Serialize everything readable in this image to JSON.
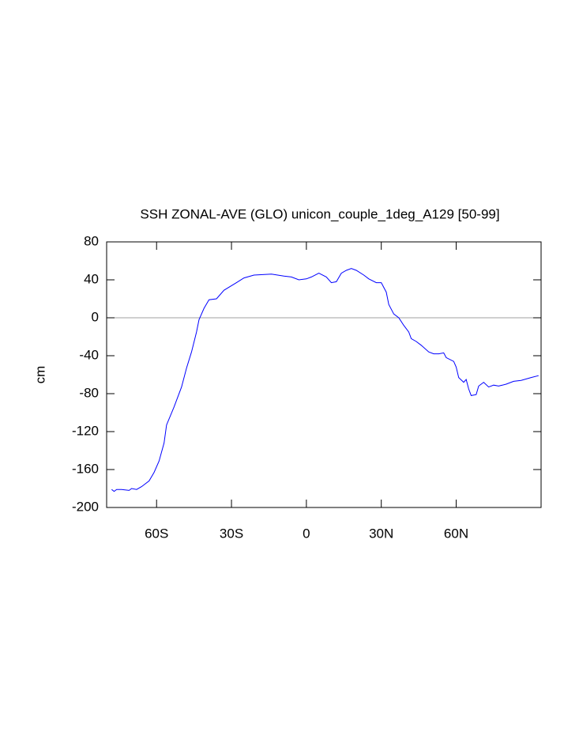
{
  "chart_data": {
    "type": "line",
    "title": "SSH ZONAL-AVE (GLO) unicon_couple_1deg_A129 [50-99]",
    "ylabel": "cm",
    "x": [
      -78,
      -77,
      -76,
      -74,
      -71,
      -70,
      -68,
      -66,
      -63,
      -61,
      -59,
      -57,
      -56,
      -53,
      -50,
      -48,
      -46,
      -44,
      -43,
      -41,
      -39,
      -36,
      -33,
      -28,
      -25,
      -21,
      -14,
      -9,
      -6,
      -3,
      0,
      2,
      5,
      8,
      10,
      12,
      14,
      16,
      18,
      20,
      23,
      25,
      28,
      30,
      32,
      33,
      35,
      37,
      39,
      41,
      42,
      44,
      46,
      49,
      51,
      53,
      55,
      56,
      59,
      60,
      61,
      63,
      64,
      65,
      66,
      68,
      69,
      71,
      73,
      75,
      77,
      80,
      83,
      86,
      90,
      93
    ],
    "series": [
      {
        "color": "#0000ff",
        "values": [
          -181,
          -183,
          -181,
          -181,
          -182,
          -180,
          -181,
          -178,
          -172,
          -163,
          -151,
          -132,
          -113,
          -94,
          -73,
          -53,
          -36,
          -15,
          -2,
          10,
          19,
          20,
          29,
          37,
          42,
          45,
          46,
          44,
          43,
          40,
          41,
          43,
          47,
          43,
          37,
          38,
          47,
          50,
          52,
          50,
          45,
          41,
          37,
          37,
          27,
          14,
          4,
          0,
          -8,
          -15,
          -22,
          -25,
          -29,
          -36,
          -38,
          -38,
          -37,
          -42,
          -46,
          -52,
          -63,
          -68,
          -65,
          -75,
          -82,
          -81,
          -72,
          -68,
          -73,
          -71,
          -72,
          -70,
          -67,
          -66,
          -63,
          -61
        ]
      }
    ],
    "xlim": [
      -80,
      94
    ],
    "ylim": [
      -200,
      80
    ],
    "xticks": [
      {
        "value": -60,
        "label": "60S"
      },
      {
        "value": -30,
        "label": "30S"
      },
      0,
      {
        "value": 30,
        "label": "30N"
      },
      {
        "value": 60,
        "label": "60N"
      }
    ],
    "yticks": [
      -200,
      -160,
      -120,
      -80,
      -40,
      0,
      40,
      80
    ],
    "hline": 0,
    "hline_color": "#a0a0a0"
  }
}
